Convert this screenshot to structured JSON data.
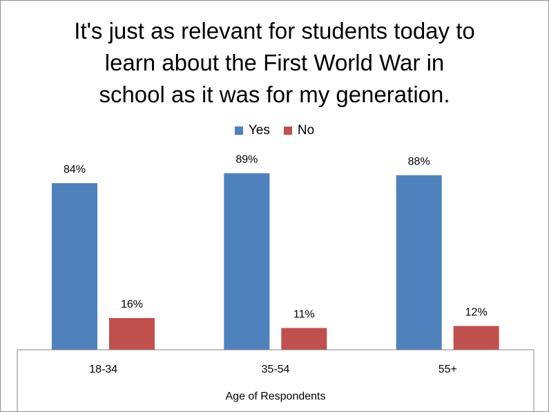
{
  "chart_data": {
    "type": "bar",
    "title_lines": [
      "It's just as relevant for students today to",
      "learn about the First World War in",
      "school as it was for my generation."
    ],
    "xlabel": "Age of Respondents",
    "ylabel": "",
    "categories": [
      "18-34",
      "35-54",
      "55+"
    ],
    "series": [
      {
        "name": "Yes",
        "color": "#4f81bd",
        "values": [
          84,
          89,
          88
        ],
        "labels": [
          "84%",
          "89%",
          "88%"
        ]
      },
      {
        "name": "No",
        "color": "#c0504d",
        "values": [
          16,
          11,
          12
        ],
        "labels": [
          "16%",
          "11%",
          "12%"
        ]
      }
    ],
    "ylim": [
      0,
      100
    ],
    "grid": false,
    "legend_position": "top"
  }
}
